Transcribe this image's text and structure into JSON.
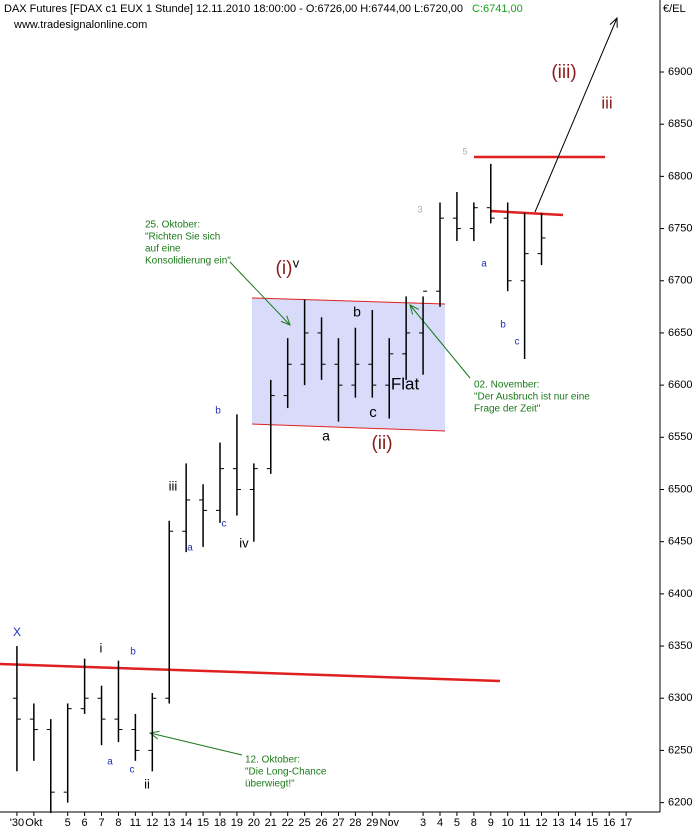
{
  "chart_data": {
    "type": "ohlc",
    "title": "DAX Futures [FDAX c1 EUX  1 Stunde] 12.11.2010 18:00:00 - O:6726,00 H:6744,00 L:6720,00",
    "last_close_label": "C:6741,00",
    "subtitle": "www.tradesignalonline.com",
    "y_axis_label": "€/EL",
    "color": "#000000",
    "x": [
      0,
      1,
      2,
      3,
      4,
      5,
      6,
      7,
      8,
      9,
      10,
      11,
      12,
      13,
      14,
      15,
      16,
      17,
      18,
      19,
      20,
      21,
      22,
      23,
      24,
      25,
      26,
      27,
      28,
      29,
      30,
      31
    ],
    "open": [
      6300,
      6280,
      6270,
      6210,
      6290,
      6300,
      6280,
      6270,
      6250,
      6300,
      6460,
      6490,
      6480,
      6520,
      6500,
      6520,
      6590,
      6620,
      6650,
      6620,
      6600,
      6620,
      6600,
      6630,
      6650,
      6690,
      6760,
      6750,
      6770,
      6760,
      6700,
      6726
    ],
    "high": [
      6350,
      6295,
      6280,
      6295,
      6338,
      6312,
      6336,
      6285,
      6305,
      6470,
      6525,
      6505,
      6545,
      6572,
      6525,
      6605,
      6645,
      6682,
      6665,
      6645,
      6655,
      6672,
      6645,
      6685,
      6685,
      6775,
      6785,
      6775,
      6812,
      6775,
      6765,
      6765
    ],
    "low": [
      6230,
      6240,
      6190,
      6200,
      6285,
      6255,
      6258,
      6240,
      6230,
      6295,
      6440,
      6445,
      6468,
      6475,
      6450,
      6515,
      6578,
      6600,
      6605,
      6565,
      6588,
      6588,
      6568,
      6605,
      6610,
      6675,
      6738,
      6738,
      6755,
      6690,
      6625,
      6715
    ],
    "close": [
      6280,
      6270,
      6210,
      6290,
      6300,
      6280,
      6270,
      6250,
      6300,
      6460,
      6490,
      6480,
      6520,
      6500,
      6520,
      6590,
      6620,
      6650,
      6620,
      6600,
      6620,
      6600,
      6630,
      6650,
      6690,
      6760,
      6750,
      6770,
      6760,
      6700,
      6726,
      6741
    ],
    "xlim": [
      -1,
      38
    ],
    "xticks": [
      {
        "value": 0,
        "label": "'30"
      },
      {
        "value": 1,
        "label": "Okt"
      },
      {
        "value": 3,
        "label": "5"
      },
      {
        "value": 4,
        "label": "6"
      },
      {
        "value": 5,
        "label": "7"
      },
      {
        "value": 6,
        "label": "8"
      },
      {
        "value": 7,
        "label": "11"
      },
      {
        "value": 8,
        "label": "12"
      },
      {
        "value": 9,
        "label": "13"
      },
      {
        "value": 10,
        "label": "14"
      },
      {
        "value": 11,
        "label": "15"
      },
      {
        "value": 12,
        "label": "18"
      },
      {
        "value": 13,
        "label": "19"
      },
      {
        "value": 14,
        "label": "20"
      },
      {
        "value": 15,
        "label": "21"
      },
      {
        "value": 16,
        "label": "22"
      },
      {
        "value": 17,
        "label": "25"
      },
      {
        "value": 18,
        "label": "26"
      },
      {
        "value": 19,
        "label": "27"
      },
      {
        "value": 20,
        "label": "28"
      },
      {
        "value": 21,
        "label": "29"
      },
      {
        "value": 22,
        "label": "Nov"
      },
      {
        "value": 24,
        "label": "3"
      },
      {
        "value": 25,
        "label": "4"
      },
      {
        "value": 26,
        "label": "5"
      },
      {
        "value": 27,
        "label": "8"
      },
      {
        "value": 28,
        "label": "9"
      },
      {
        "value": 29,
        "label": "10"
      },
      {
        "value": 30,
        "label": "11"
      },
      {
        "value": 31,
        "label": "12"
      },
      {
        "value": 32,
        "label": "13"
      },
      {
        "value": 33,
        "label": "14"
      },
      {
        "value": 34,
        "label": "15"
      },
      {
        "value": 35,
        "label": "16"
      },
      {
        "value": 36,
        "label": "17"
      }
    ],
    "ylim": [
      6191,
      6969
    ],
    "yticks": [
      6200,
      6250,
      6300,
      6350,
      6400,
      6450,
      6500,
      6550,
      6600,
      6650,
      6700,
      6750,
      6800,
      6850,
      6900
    ],
    "wave_labels": [
      "X",
      "i",
      "a",
      "b",
      "c",
      "ii",
      "iii",
      "a",
      "b",
      "c",
      "iv",
      "(i)",
      "v",
      "a",
      "b",
      "c",
      "Flat",
      "(ii)",
      "(iii)",
      "iii",
      "a",
      "b",
      "c",
      "5",
      "3"
    ],
    "notes": [
      [
        "25. Oktober:",
        "\"Richten Sie sich",
        "auf eine",
        "Konsolidierung ein\""
      ],
      [
        "02. November:",
        "\"Der Ausbruch ist nur eine",
        "Frage der Zeit\""
      ],
      [
        "12. Oktober:",
        "\"Die Long-Chance",
        "überwiegt!\""
      ]
    ]
  }
}
